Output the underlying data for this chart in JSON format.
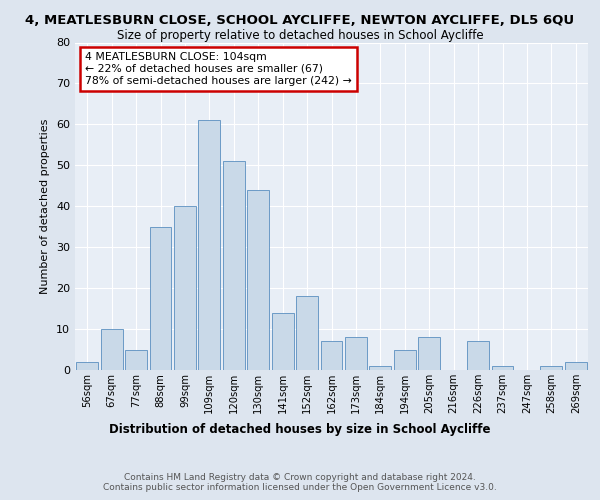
{
  "title1": "4, MEATLESBURN CLOSE, SCHOOL AYCLIFFE, NEWTON AYCLIFFE, DL5 6QU",
  "title2": "Size of property relative to detached houses in School Aycliffe",
  "xlabel": "Distribution of detached houses by size in School Aycliffe",
  "ylabel": "Number of detached properties",
  "categories": [
    "56sqm",
    "67sqm",
    "77sqm",
    "88sqm",
    "99sqm",
    "109sqm",
    "120sqm",
    "130sqm",
    "141sqm",
    "152sqm",
    "162sqm",
    "173sqm",
    "184sqm",
    "194sqm",
    "205sqm",
    "216sqm",
    "226sqm",
    "237sqm",
    "247sqm",
    "258sqm",
    "269sqm"
  ],
  "values": [
    2,
    10,
    5,
    35,
    40,
    61,
    51,
    44,
    14,
    18,
    7,
    8,
    1,
    5,
    8,
    0,
    7,
    1,
    0,
    1,
    2
  ],
  "bar_color": "#c9d9e8",
  "bar_edge_color": "#5a8fc0",
  "annotation_text": "4 MEATLESBURN CLOSE: 104sqm\n← 22% of detached houses are smaller (67)\n78% of semi-detached houses are larger (242) →",
  "annotation_box_color": "#ffffff",
  "annotation_box_edge_color": "#cc0000",
  "bg_color": "#dde5ef",
  "plot_bg_color": "#e8eef6",
  "footer": "Contains HM Land Registry data © Crown copyright and database right 2024.\nContains public sector information licensed under the Open Government Licence v3.0.",
  "ylim": [
    0,
    80
  ],
  "yticks": [
    0,
    10,
    20,
    30,
    40,
    50,
    60,
    70,
    80
  ]
}
